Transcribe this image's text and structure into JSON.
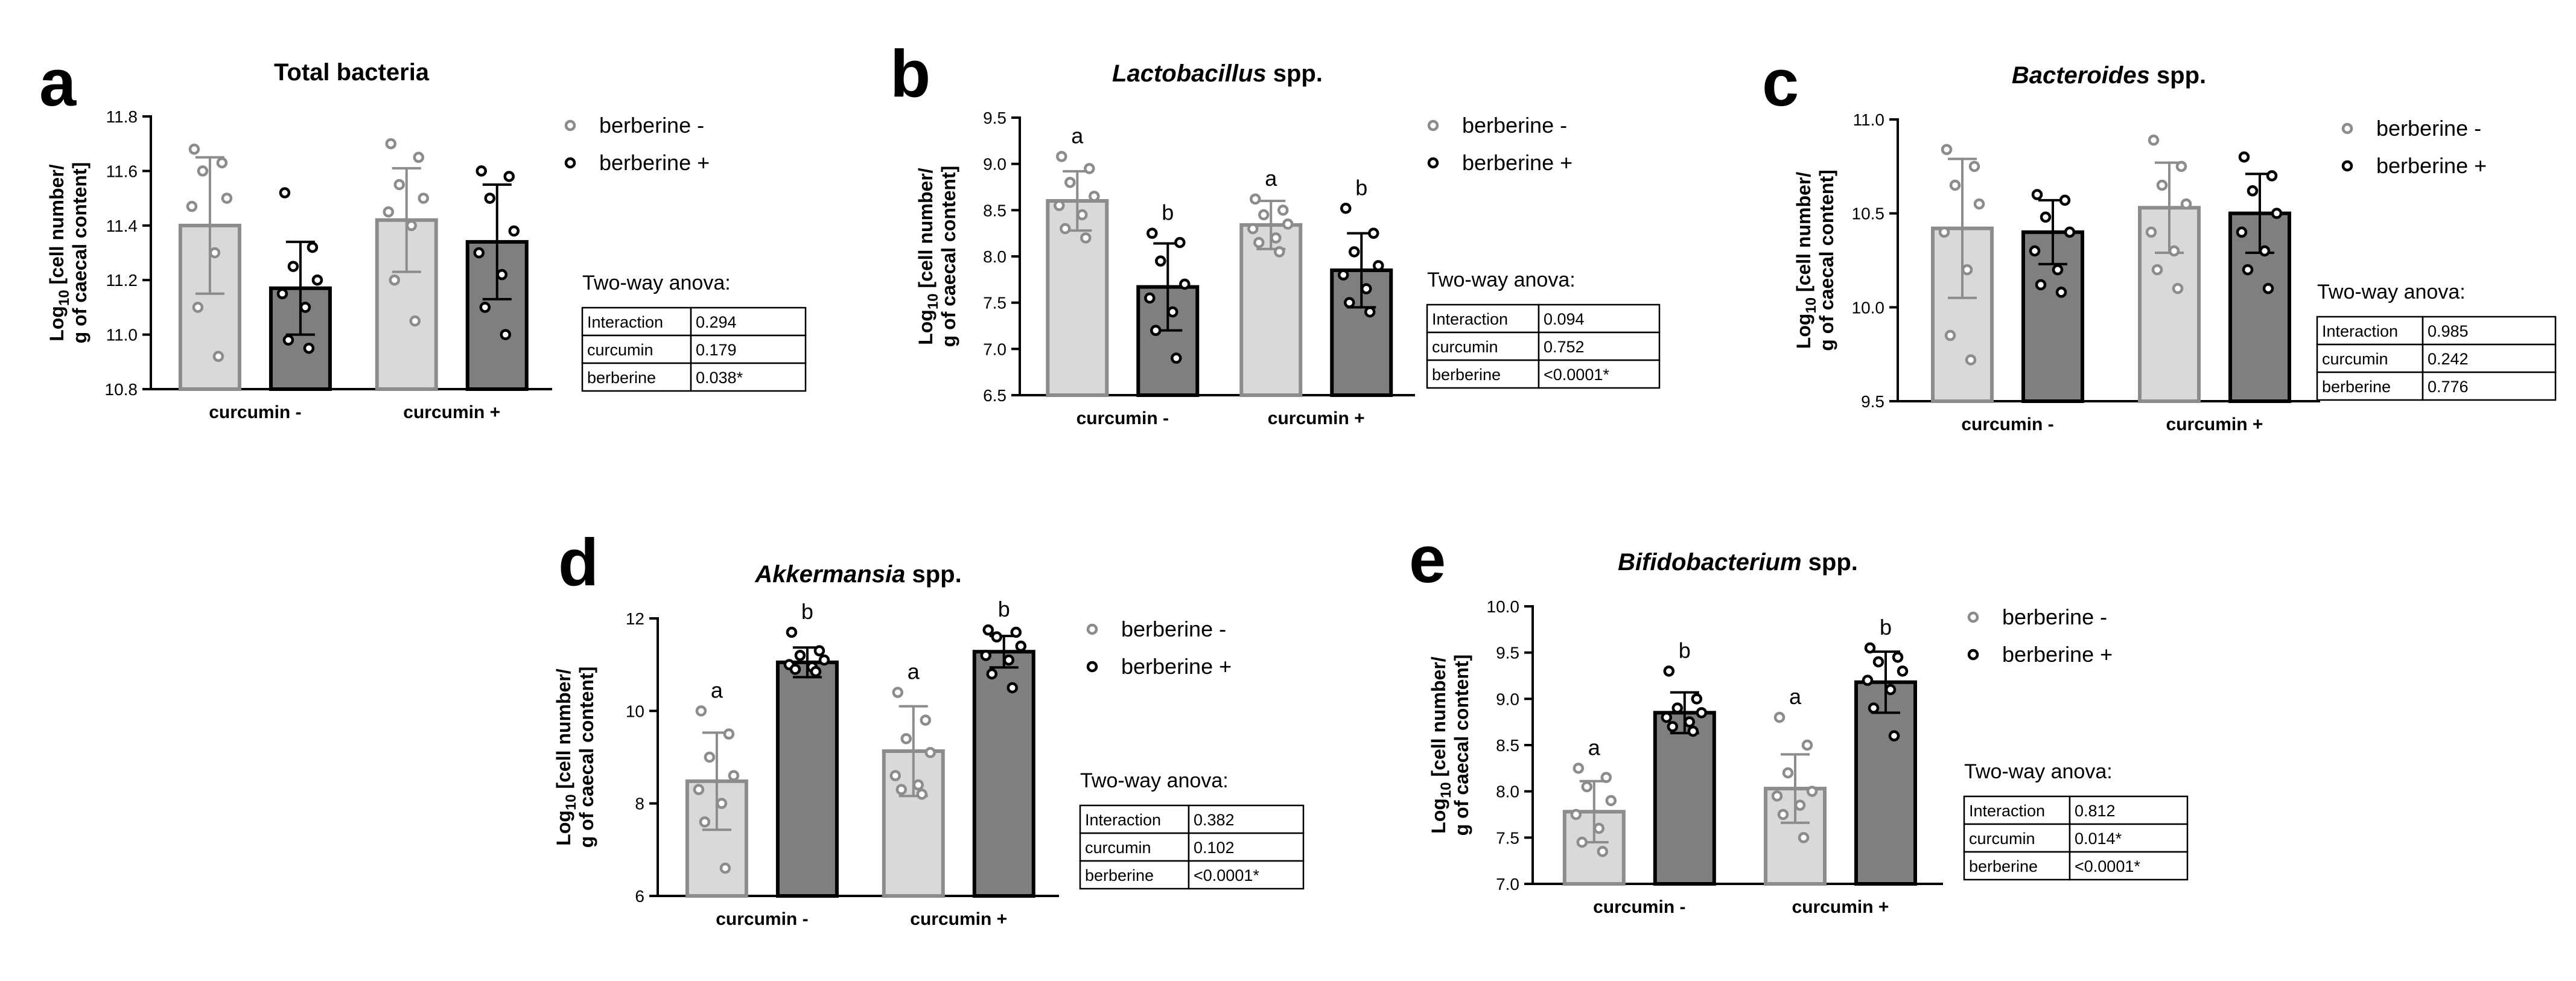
{
  "legend": {
    "labels": [
      "berberine -",
      "berberine +"
    ],
    "colors": {
      "light_bar": "#d9d9d9",
      "light_edge": "#8c8c8c",
      "dark_bar": "#7f7f7f",
      "dark_edge": "#000000"
    }
  },
  "anova_title": "Two-way anova:",
  "chart_data": [
    {
      "panel": "a",
      "type": "bar",
      "title": {
        "pre": "",
        "italic": "",
        "post": "Total bacteria"
      },
      "ylabel_lines": [
        "Log10 [cell number/",
        "g of caecal content]"
      ],
      "ylabel_sub": "10",
      "ylim": [
        10.8,
        11.8
      ],
      "yticks": [
        "10.8",
        "11.0",
        "11.2",
        "11.4",
        "11.6",
        "11.8"
      ],
      "categories": [
        "curcumin -",
        "curcumin +"
      ],
      "series": [
        {
          "name": "berberine -",
          "values": [
            11.4,
            11.42
          ],
          "error": [
            0.25,
            0.19
          ],
          "points": [
            [
              11.68,
              11.63,
              11.6,
              11.5,
              11.47,
              11.3,
              11.1,
              10.92
            ],
            [
              11.7,
              11.65,
              11.55,
              11.5,
              11.45,
              11.4,
              11.2,
              11.05
            ]
          ]
        },
        {
          "name": "berberine +",
          "values": [
            11.17,
            11.34
          ],
          "error": [
            0.17,
            0.21
          ],
          "points": [
            [
              11.52,
              11.32,
              11.25,
              11.2,
              11.15,
              11.1,
              10.98,
              10.95
            ],
            [
              11.6,
              11.58,
              11.5,
              11.38,
              11.3,
              11.22,
              11.1,
              11.0
            ]
          ]
        }
      ],
      "letters": null,
      "anova": [
        [
          "Interaction",
          "0.294"
        ],
        [
          "curcumin",
          "0.179"
        ],
        [
          "berberine",
          "0.038*"
        ]
      ]
    },
    {
      "panel": "b",
      "type": "bar",
      "title": {
        "pre": "",
        "italic": "Lactobacillus",
        "post": " spp."
      },
      "ylabel_lines": [
        "Log10 [cell number/",
        "g of caecal content]"
      ],
      "ylabel_sub": "10",
      "ylim": [
        6.5,
        9.5
      ],
      "yticks": [
        "6.5",
        "7.0",
        "7.5",
        "8.0",
        "8.5",
        "9.0",
        "9.5"
      ],
      "categories": [
        "curcumin -",
        "curcumin +"
      ],
      "series": [
        {
          "name": "berberine -",
          "values": [
            8.6,
            8.34
          ],
          "error": [
            0.32,
            0.26
          ],
          "points": [
            [
              9.08,
              8.95,
              8.8,
              8.65,
              8.55,
              8.45,
              8.3,
              8.2
            ],
            [
              8.62,
              8.5,
              8.45,
              8.35,
              8.3,
              8.2,
              8.15,
              8.05
            ]
          ]
        },
        {
          "name": "berberine +",
          "values": [
            7.67,
            7.85
          ],
          "error": [
            0.47,
            0.4
          ],
          "points": [
            [
              8.25,
              8.15,
              7.95,
              7.7,
              7.55,
              7.4,
              7.2,
              6.9
            ],
            [
              8.52,
              8.25,
              8.05,
              7.9,
              7.8,
              7.65,
              7.5,
              7.4
            ]
          ]
        }
      ],
      "letters": [
        [
          "a",
          "a"
        ],
        [
          "b",
          "b"
        ]
      ],
      "anova": [
        [
          "Interaction",
          "0.094"
        ],
        [
          "curcumin",
          "0.752"
        ],
        [
          "berberine",
          "<0.0001*"
        ]
      ]
    },
    {
      "panel": "c",
      "type": "bar",
      "title": {
        "pre": "",
        "italic": "Bacteroides",
        "post": " spp."
      },
      "ylabel_lines": [
        "Log10 [cell number/",
        "g of caecal content]"
      ],
      "ylabel_sub": "10",
      "ylim": [
        9.5,
        11.0
      ],
      "yticks": [
        "9.5",
        "10.0",
        "10.5",
        "11.0"
      ],
      "categories": [
        "curcumin -",
        "curcumin +"
      ],
      "series": [
        {
          "name": "berberine -",
          "values": [
            10.42,
            10.53
          ],
          "error": [
            0.37,
            0.24
          ],
          "points": [
            [
              10.84,
              10.75,
              10.65,
              10.55,
              10.4,
              10.2,
              9.85,
              9.72
            ],
            [
              10.89,
              10.75,
              10.65,
              10.55,
              10.4,
              10.3,
              10.2,
              10.1
            ]
          ]
        },
        {
          "name": "berberine +",
          "values": [
            10.4,
            10.5
          ],
          "error": [
            0.17,
            0.21
          ],
          "points": [
            [
              10.6,
              10.57,
              10.48,
              10.4,
              10.3,
              10.2,
              10.12,
              10.08
            ],
            [
              10.8,
              10.7,
              10.62,
              10.5,
              10.4,
              10.3,
              10.2,
              10.1
            ]
          ]
        }
      ],
      "letters": null,
      "anova": [
        [
          "Interaction",
          "0.985"
        ],
        [
          "curcumin",
          "0.242"
        ],
        [
          "berberine",
          "0.776"
        ]
      ]
    },
    {
      "panel": "d",
      "type": "bar",
      "title": {
        "pre": "",
        "italic": "Akkermansia",
        "post": " spp."
      },
      "ylabel_lines": [
        "Log10 [cell number/",
        "g of caecal content]"
      ],
      "ylabel_sub": "10",
      "ylim": [
        6,
        12
      ],
      "yticks": [
        "6",
        "8",
        "10",
        "12"
      ],
      "categories": [
        "curcumin -",
        "curcumin +"
      ],
      "series": [
        {
          "name": "berberine -",
          "values": [
            8.48,
            9.13
          ],
          "error": [
            1.05,
            0.97
          ],
          "points": [
            [
              10.0,
              9.5,
              9.0,
              8.6,
              8.3,
              8.0,
              7.6,
              6.6
            ],
            [
              10.4,
              9.8,
              9.4,
              9.1,
              8.6,
              8.4,
              8.3,
              8.2
            ]
          ]
        },
        {
          "name": "berberine +",
          "values": [
            11.05,
            11.28
          ],
          "error": [
            0.32,
            0.34
          ],
          "points": [
            [
              11.7,
              11.3,
              11.2,
              11.1,
              11.0,
              10.95,
              10.9,
              10.85
            ],
            [
              11.75,
              11.7,
              11.6,
              11.4,
              11.2,
              11.1,
              10.8,
              10.5
            ]
          ]
        }
      ],
      "letters": [
        [
          "a",
          "a"
        ],
        [
          "b",
          "b"
        ]
      ],
      "anova": [
        [
          "Interaction",
          "0.382"
        ],
        [
          "curcumin",
          "0.102"
        ],
        [
          "berberine",
          "<0.0001*"
        ]
      ]
    },
    {
      "panel": "e",
      "type": "bar",
      "title": {
        "pre": "",
        "italic": "Bifidobacterium",
        "post": " spp."
      },
      "ylabel_lines": [
        "Log10 [cell number/",
        "g of caecal content]"
      ],
      "ylabel_sub": "10",
      "ylim": [
        7.0,
        10.0
      ],
      "yticks": [
        "7.0",
        "7.5",
        "8.0",
        "8.5",
        "9.0",
        "9.5",
        "10.0"
      ],
      "categories": [
        "curcumin -",
        "curcumin +"
      ],
      "series": [
        {
          "name": "berberine -",
          "values": [
            7.78,
            8.03
          ],
          "error": [
            0.33,
            0.37
          ],
          "points": [
            [
              8.25,
              8.15,
              8.05,
              7.9,
              7.75,
              7.6,
              7.45,
              7.35
            ],
            [
              8.8,
              8.5,
              8.2,
              8.0,
              7.95,
              7.85,
              7.75,
              7.5
            ]
          ]
        },
        {
          "name": "berberine +",
          "values": [
            8.85,
            9.18
          ],
          "error": [
            0.22,
            0.33
          ],
          "points": [
            [
              9.3,
              9.0,
              8.9,
              8.85,
              8.8,
              8.75,
              8.7,
              8.65
            ],
            [
              9.55,
              9.45,
              9.4,
              9.3,
              9.2,
              9.1,
              8.9,
              8.6
            ]
          ]
        }
      ],
      "letters": [
        [
          "a",
          "a"
        ],
        [
          "b",
          "b"
        ]
      ],
      "anova": [
        [
          "Interaction",
          "0.812"
        ],
        [
          "curcumin",
          "0.014*"
        ],
        [
          "berberine",
          "<0.0001*"
        ]
      ]
    }
  ]
}
